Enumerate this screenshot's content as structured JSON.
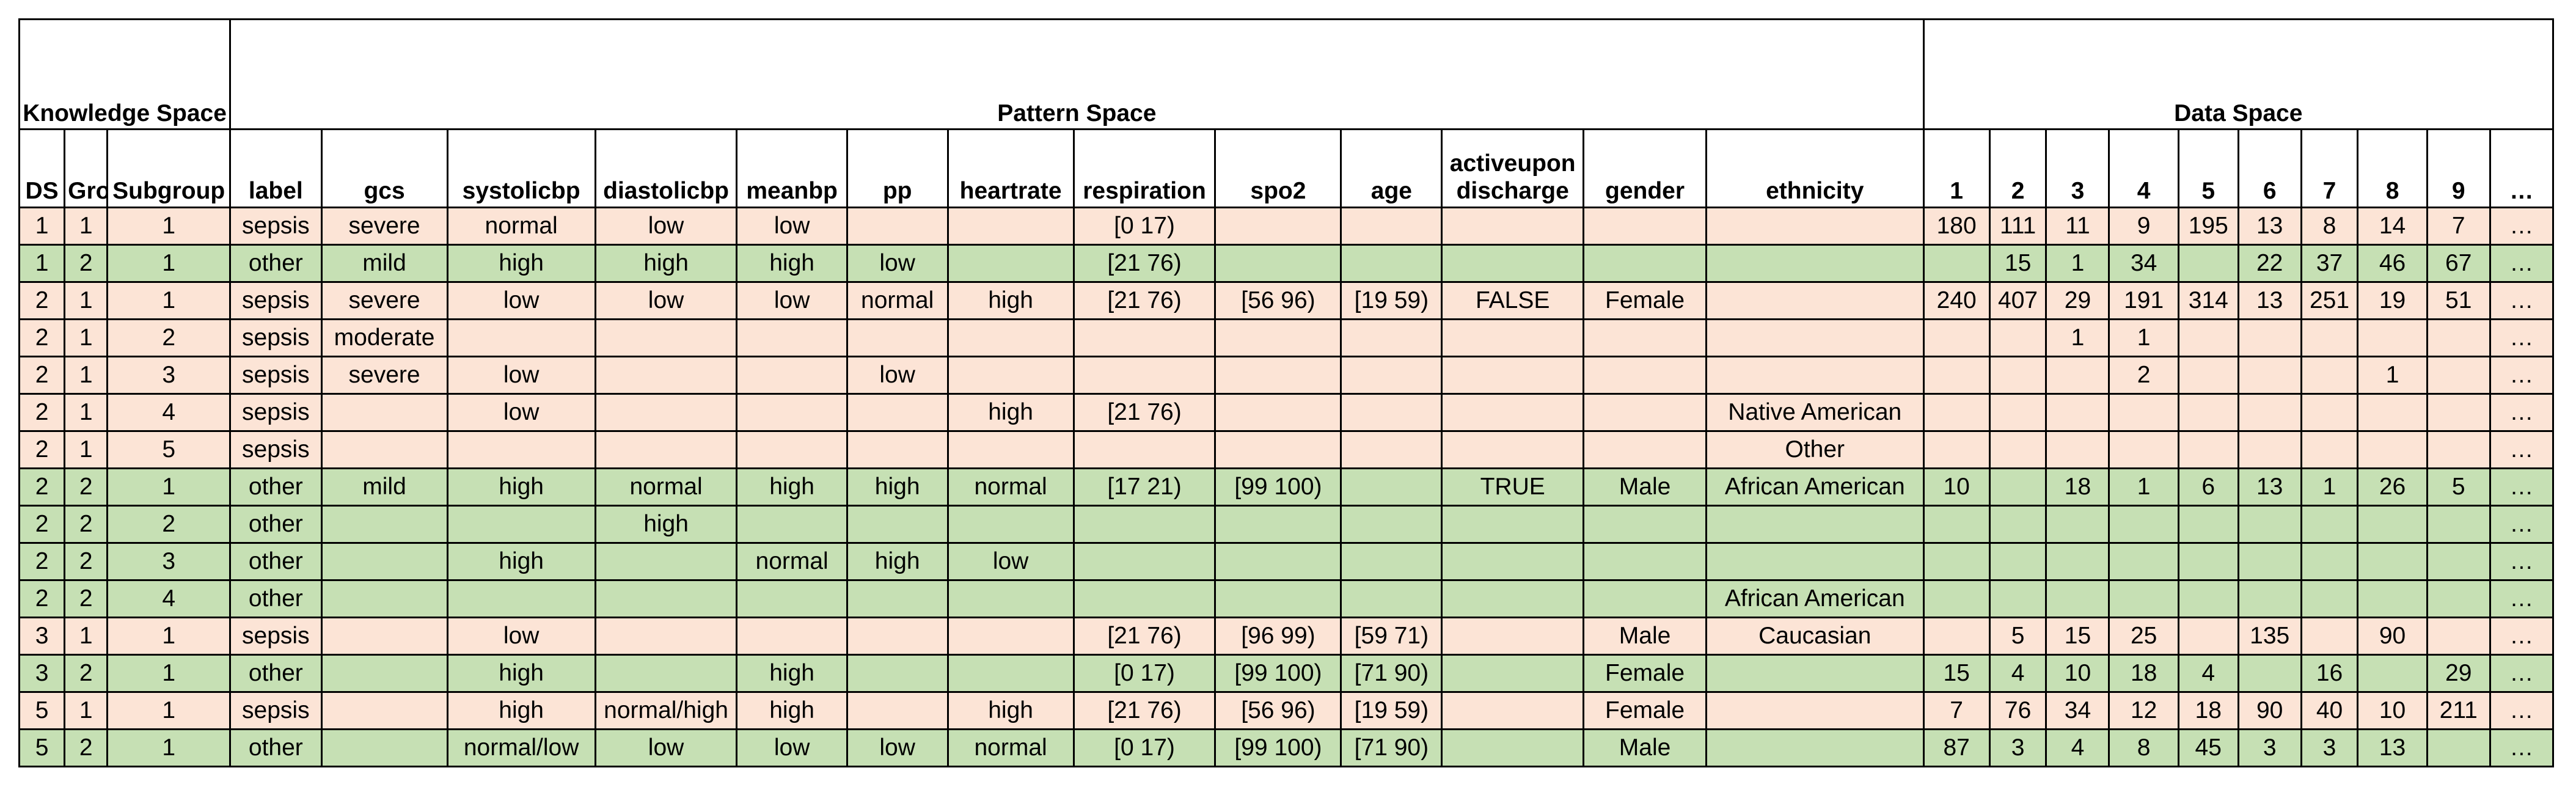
{
  "spaces": {
    "knowledge": "Knowledge Space",
    "pattern": "Pattern Space",
    "data": "Data Space"
  },
  "headers": [
    "DS",
    "Group",
    "Subgroup",
    "label",
    "gcs",
    "systolicbp",
    "diastolicbp",
    "meanbp",
    "pp",
    "heartrate",
    "respiration",
    "spo2",
    "age",
    "activeupon discharge",
    "gender",
    "ethnicity",
    "1",
    "2",
    "3",
    "4",
    "5",
    "6",
    "7",
    "8",
    "9",
    "…"
  ],
  "row_colors": {
    "sepsis": "#fce4d6",
    "other": "#c6e0b4"
  },
  "rows": [
    [
      "1",
      "1",
      "1",
      "sepsis",
      "severe",
      "normal",
      "low",
      "low",
      "",
      "",
      "[0 17)",
      "",
      "",
      "",
      "",
      "",
      "180",
      "111",
      "11",
      "9",
      "195",
      "13",
      "8",
      "14",
      "7",
      "…"
    ],
    [
      "1",
      "2",
      "1",
      "other",
      "mild",
      "high",
      "high",
      "high",
      "low",
      "",
      "[21 76)",
      "",
      "",
      "",
      "",
      "",
      "",
      "15",
      "1",
      "34",
      "",
      "22",
      "37",
      "46",
      "67",
      "…"
    ],
    [
      "2",
      "1",
      "1",
      "sepsis",
      "severe",
      "low",
      "low",
      "low",
      "normal",
      "high",
      "[21 76)",
      "[56 96)",
      "[19 59)",
      "FALSE",
      "Female",
      "",
      "240",
      "407",
      "29",
      "191",
      "314",
      "13",
      "251",
      "19",
      "51",
      "…"
    ],
    [
      "2",
      "1",
      "2",
      "sepsis",
      "moderate",
      "",
      "",
      "",
      "",
      "",
      "",
      "",
      "",
      "",
      "",
      "",
      "",
      "",
      "1",
      "1",
      "",
      "",
      "",
      "",
      "",
      "…"
    ],
    [
      "2",
      "1",
      "3",
      "sepsis",
      "severe",
      "low",
      "",
      "",
      "low",
      "",
      "",
      "",
      "",
      "",
      "",
      "",
      "",
      "",
      "",
      "2",
      "",
      "",
      "",
      "1",
      "",
      "…"
    ],
    [
      "2",
      "1",
      "4",
      "sepsis",
      "",
      "low",
      "",
      "",
      "",
      "high",
      "[21 76)",
      "",
      "",
      "",
      "",
      "Native American",
      "",
      "",
      "",
      "",
      "",
      "",
      "",
      "",
      "",
      "…"
    ],
    [
      "2",
      "1",
      "5",
      "sepsis",
      "",
      "",
      "",
      "",
      "",
      "",
      "",
      "",
      "",
      "",
      "",
      "Other",
      "",
      "",
      "",
      "",
      "",
      "",
      "",
      "",
      "",
      "…"
    ],
    [
      "2",
      "2",
      "1",
      "other",
      "mild",
      "high",
      "normal",
      "high",
      "high",
      "normal",
      "[17 21)",
      "[99 100)",
      "",
      "TRUE",
      "Male",
      "African American",
      "10",
      "",
      "18",
      "1",
      "6",
      "13",
      "1",
      "26",
      "5",
      "…"
    ],
    [
      "2",
      "2",
      "2",
      "other",
      "",
      "",
      "high",
      "",
      "",
      "",
      "",
      "",
      "",
      "",
      "",
      "",
      "",
      "",
      "",
      "",
      "",
      "",
      "",
      "",
      "",
      "…"
    ],
    [
      "2",
      "2",
      "3",
      "other",
      "",
      "high",
      "",
      "normal",
      "high",
      "low",
      "",
      "",
      "",
      "",
      "",
      "",
      "",
      "",
      "",
      "",
      "",
      "",
      "",
      "",
      "",
      "…"
    ],
    [
      "2",
      "2",
      "4",
      "other",
      "",
      "",
      "",
      "",
      "",
      "",
      "",
      "",
      "",
      "",
      "",
      "African American",
      "",
      "",
      "",
      "",
      "",
      "",
      "",
      "",
      "",
      "…"
    ],
    [
      "3",
      "1",
      "1",
      "sepsis",
      "",
      "low",
      "",
      "",
      "",
      "",
      "[21 76)",
      "[96 99)",
      "[59 71)",
      "",
      "Male",
      "Caucasian",
      "",
      "5",
      "15",
      "25",
      "",
      "135",
      "",
      "90",
      "",
      "…"
    ],
    [
      "3",
      "2",
      "1",
      "other",
      "",
      "high",
      "",
      "high",
      "",
      "",
      "[0 17)",
      "[99 100)",
      "[71 90)",
      "",
      "Female",
      "",
      "15",
      "4",
      "10",
      "18",
      "4",
      "",
      "16",
      "",
      "29",
      "…"
    ],
    [
      "5",
      "1",
      "1",
      "sepsis",
      "",
      "high",
      "normal/high",
      "high",
      "",
      "high",
      "[21 76)",
      "[56 96)",
      "[19 59)",
      "",
      "Female",
      "",
      "7",
      "76",
      "34",
      "12",
      "18",
      "90",
      "40",
      "10",
      "211",
      "…"
    ],
    [
      "5",
      "2",
      "1",
      "other",
      "",
      "normal/low",
      "low",
      "low",
      "low",
      "normal",
      "[0 17)",
      "[99 100)",
      "[71 90)",
      "",
      "Male",
      "",
      "87",
      "3",
      "4",
      "8",
      "45",
      "3",
      "3",
      "13",
      "",
      "…"
    ]
  ]
}
